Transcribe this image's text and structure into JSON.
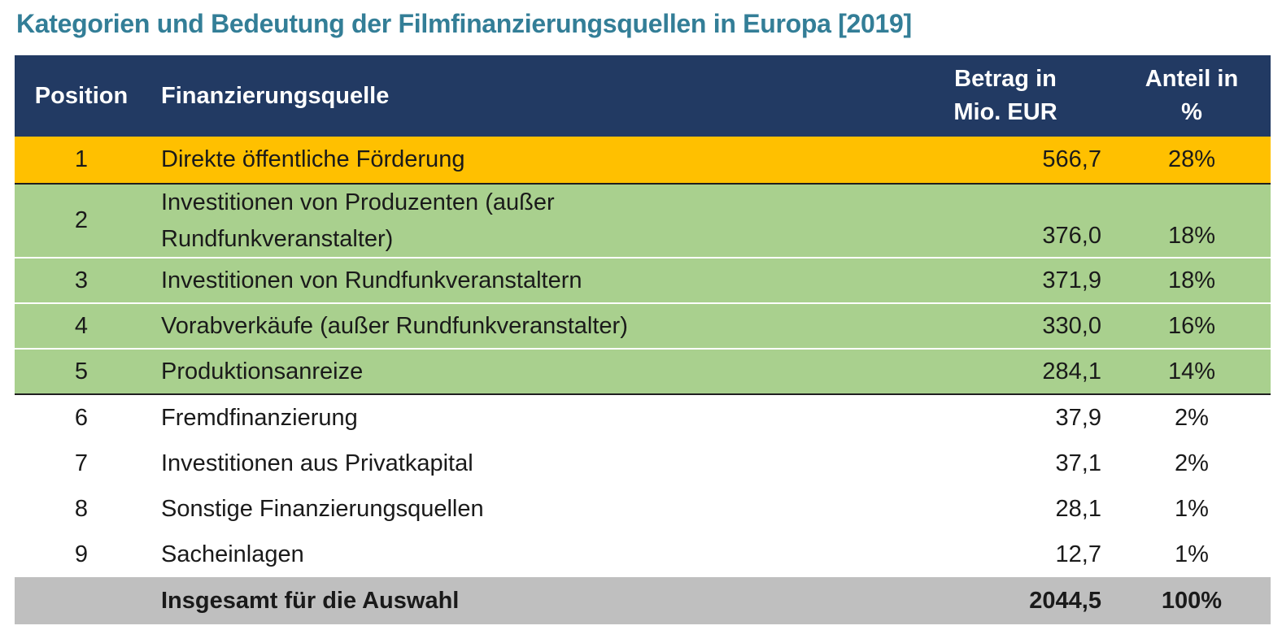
{
  "title": "Kategorien und Bedeutung der Filmfinanzierungsquellen in Europa [2019]",
  "colors": {
    "title_text": "#337E97",
    "header_bg": "#223A63",
    "header_text": "#FFFFFF",
    "highlight_orange": "#FFC000",
    "highlight_green": "#A9D08E",
    "total_bg": "#BFBFBF",
    "body_text": "#1A1A1A"
  },
  "table": {
    "columns": [
      {
        "label": "Position"
      },
      {
        "label": "Finanzierungsquelle"
      },
      {
        "label": "Betrag in\nMio. EUR"
      },
      {
        "label": "Anteil in\n%"
      }
    ],
    "rows": [
      {
        "position": "1",
        "source": "Direkte öffentliche Förderung",
        "amount": "566,7",
        "share": "28%"
      },
      {
        "position": "2",
        "source": "Investitionen von Produzenten (außer\nRundfunkveranstalter)",
        "amount": "376,0",
        "share": "18%"
      },
      {
        "position": "3",
        "source": "Investitionen von Rundfunkveranstaltern",
        "amount": "371,9",
        "share": "18%"
      },
      {
        "position": "4",
        "source": "Vorabverkäufe (außer Rundfunkveranstalter)",
        "amount": "330,0",
        "share": "16%"
      },
      {
        "position": "5",
        "source": "Produktionsanreize",
        "amount": "284,1",
        "share": "14%"
      },
      {
        "position": "6",
        "source": "Fremdfinanzierung",
        "amount": "37,9",
        "share": "2%"
      },
      {
        "position": "7",
        "source": "Investitionen aus Privatkapital",
        "amount": "37,1",
        "share": "2%"
      },
      {
        "position": "8",
        "source": "Sonstige Finanzierungsquellen",
        "amount": "28,1",
        "share": "1%"
      },
      {
        "position": "9",
        "source": "Sacheinlagen",
        "amount": "12,7",
        "share": "1%"
      }
    ],
    "total_row": {
      "label": "Insgesamt für die Auswahl",
      "amount": "2044,5",
      "share": "100%"
    }
  },
  "chart_data": {
    "type": "table",
    "title": "Kategorien und Bedeutung der Filmfinanzierungsquellen in Europa [2019]",
    "columns": [
      "Position",
      "Finanzierungsquelle",
      "Betrag in Mio. EUR",
      "Anteil in %"
    ],
    "categories": [
      "Direkte öffentliche Förderung",
      "Investitionen von Produzenten (außer Rundfunkveranstalter)",
      "Investitionen von Rundfunkveranstaltern",
      "Vorabverkäufe (außer Rundfunkveranstalter)",
      "Produktionsanreize",
      "Fremdfinanzierung",
      "Investitionen aus Privatkapital",
      "Sonstige Finanzierungsquellen",
      "Sacheinlagen"
    ],
    "values_mio_eur": [
      566.7,
      376.0,
      371.9,
      330.0,
      284.1,
      37.9,
      37.1,
      28.1,
      12.7
    ],
    "shares_percent": [
      28,
      18,
      18,
      16,
      14,
      2,
      2,
      1,
      1
    ],
    "total": {
      "label": "Insgesamt für die Auswahl",
      "value_mio_eur": 2044.5,
      "share_percent": 100
    },
    "layout_hints": {
      "row_highlights": {
        "orange_positions": [
          1
        ],
        "green_positions": [
          2,
          3,
          4,
          5
        ]
      },
      "grid": "horizontal separators only",
      "legend": "none"
    }
  }
}
